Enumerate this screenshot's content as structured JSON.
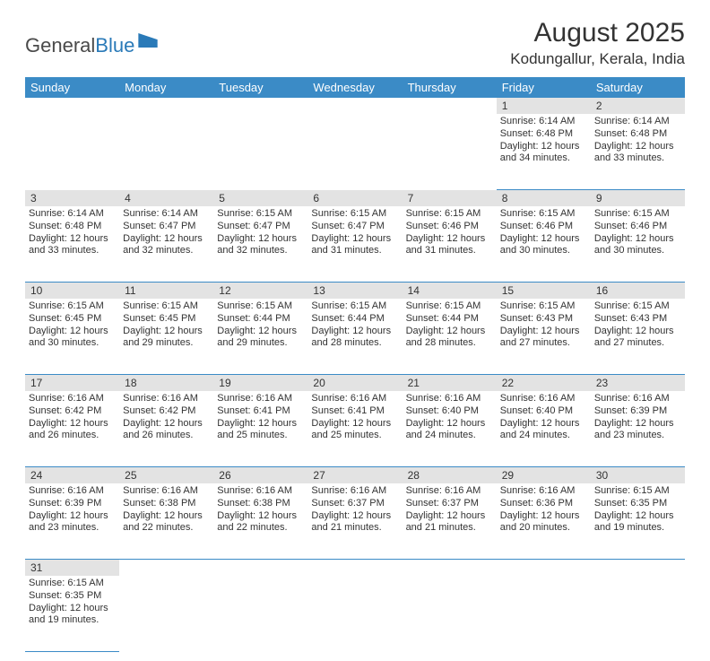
{
  "logo": {
    "part1": "General",
    "part2": "Blue"
  },
  "title": "August 2025",
  "location": "Kodungallur, Kerala, India",
  "colors": {
    "header_bg": "#3b8bc6",
    "header_text": "#ffffff",
    "daynum_bg": "#e3e3e3",
    "border": "#3b8bc6",
    "text": "#333333"
  },
  "dayNames": [
    "Sunday",
    "Monday",
    "Tuesday",
    "Wednesday",
    "Thursday",
    "Friday",
    "Saturday"
  ],
  "weeks": [
    [
      null,
      null,
      null,
      null,
      null,
      {
        "n": "1",
        "sr": "6:14 AM",
        "ss": "6:48 PM",
        "dh": "12",
        "dm": "34"
      },
      {
        "n": "2",
        "sr": "6:14 AM",
        "ss": "6:48 PM",
        "dh": "12",
        "dm": "33"
      }
    ],
    [
      {
        "n": "3",
        "sr": "6:14 AM",
        "ss": "6:48 PM",
        "dh": "12",
        "dm": "33"
      },
      {
        "n": "4",
        "sr": "6:14 AM",
        "ss": "6:47 PM",
        "dh": "12",
        "dm": "32"
      },
      {
        "n": "5",
        "sr": "6:15 AM",
        "ss": "6:47 PM",
        "dh": "12",
        "dm": "32"
      },
      {
        "n": "6",
        "sr": "6:15 AM",
        "ss": "6:47 PM",
        "dh": "12",
        "dm": "31"
      },
      {
        "n": "7",
        "sr": "6:15 AM",
        "ss": "6:46 PM",
        "dh": "12",
        "dm": "31"
      },
      {
        "n": "8",
        "sr": "6:15 AM",
        "ss": "6:46 PM",
        "dh": "12",
        "dm": "30"
      },
      {
        "n": "9",
        "sr": "6:15 AM",
        "ss": "6:46 PM",
        "dh": "12",
        "dm": "30"
      }
    ],
    [
      {
        "n": "10",
        "sr": "6:15 AM",
        "ss": "6:45 PM",
        "dh": "12",
        "dm": "30"
      },
      {
        "n": "11",
        "sr": "6:15 AM",
        "ss": "6:45 PM",
        "dh": "12",
        "dm": "29"
      },
      {
        "n": "12",
        "sr": "6:15 AM",
        "ss": "6:44 PM",
        "dh": "12",
        "dm": "29"
      },
      {
        "n": "13",
        "sr": "6:15 AM",
        "ss": "6:44 PM",
        "dh": "12",
        "dm": "28"
      },
      {
        "n": "14",
        "sr": "6:15 AM",
        "ss": "6:44 PM",
        "dh": "12",
        "dm": "28"
      },
      {
        "n": "15",
        "sr": "6:15 AM",
        "ss": "6:43 PM",
        "dh": "12",
        "dm": "27"
      },
      {
        "n": "16",
        "sr": "6:15 AM",
        "ss": "6:43 PM",
        "dh": "12",
        "dm": "27"
      }
    ],
    [
      {
        "n": "17",
        "sr": "6:16 AM",
        "ss": "6:42 PM",
        "dh": "12",
        "dm": "26"
      },
      {
        "n": "18",
        "sr": "6:16 AM",
        "ss": "6:42 PM",
        "dh": "12",
        "dm": "26"
      },
      {
        "n": "19",
        "sr": "6:16 AM",
        "ss": "6:41 PM",
        "dh": "12",
        "dm": "25"
      },
      {
        "n": "20",
        "sr": "6:16 AM",
        "ss": "6:41 PM",
        "dh": "12",
        "dm": "25"
      },
      {
        "n": "21",
        "sr": "6:16 AM",
        "ss": "6:40 PM",
        "dh": "12",
        "dm": "24"
      },
      {
        "n": "22",
        "sr": "6:16 AM",
        "ss": "6:40 PM",
        "dh": "12",
        "dm": "24"
      },
      {
        "n": "23",
        "sr": "6:16 AM",
        "ss": "6:39 PM",
        "dh": "12",
        "dm": "23"
      }
    ],
    [
      {
        "n": "24",
        "sr": "6:16 AM",
        "ss": "6:39 PM",
        "dh": "12",
        "dm": "23"
      },
      {
        "n": "25",
        "sr": "6:16 AM",
        "ss": "6:38 PM",
        "dh": "12",
        "dm": "22"
      },
      {
        "n": "26",
        "sr": "6:16 AM",
        "ss": "6:38 PM",
        "dh": "12",
        "dm": "22"
      },
      {
        "n": "27",
        "sr": "6:16 AM",
        "ss": "6:37 PM",
        "dh": "12",
        "dm": "21"
      },
      {
        "n": "28",
        "sr": "6:16 AM",
        "ss": "6:37 PM",
        "dh": "12",
        "dm": "21"
      },
      {
        "n": "29",
        "sr": "6:16 AM",
        "ss": "6:36 PM",
        "dh": "12",
        "dm": "20"
      },
      {
        "n": "30",
        "sr": "6:15 AM",
        "ss": "6:35 PM",
        "dh": "12",
        "dm": "19"
      }
    ],
    [
      {
        "n": "31",
        "sr": "6:15 AM",
        "ss": "6:35 PM",
        "dh": "12",
        "dm": "19"
      },
      null,
      null,
      null,
      null,
      null,
      null
    ]
  ],
  "labels": {
    "sunrise": "Sunrise:",
    "sunset": "Sunset:",
    "daylight": "Daylight:",
    "hours": "hours",
    "and": "and",
    "minutes": "minutes."
  }
}
